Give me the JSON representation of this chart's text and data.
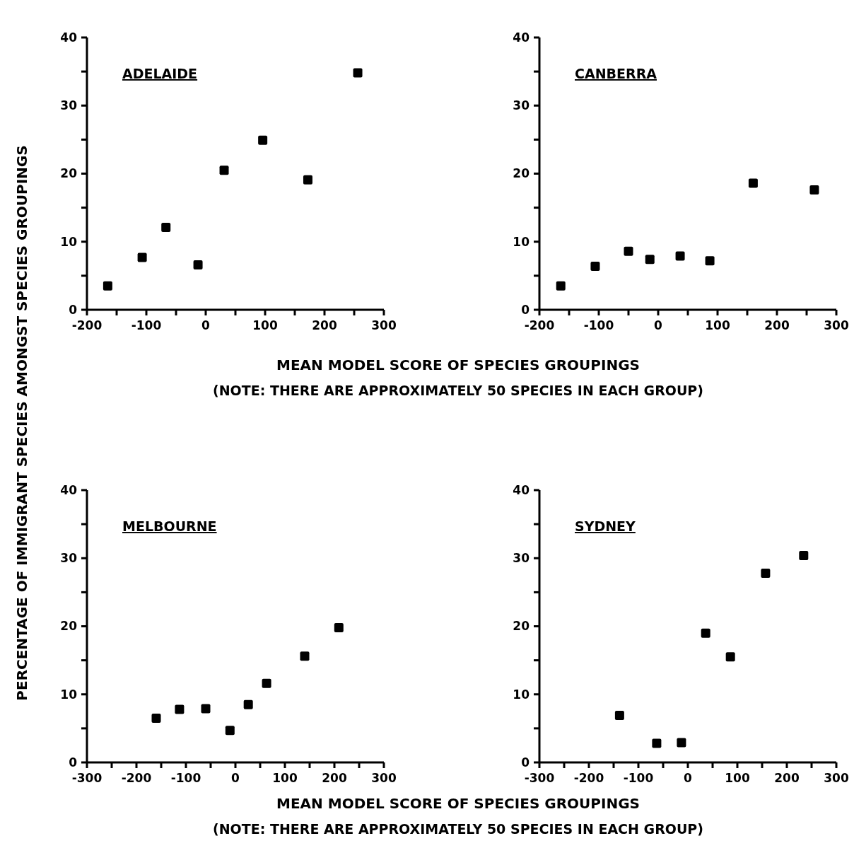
{
  "chart_data": [
    {
      "type": "scatter",
      "title": "ADELAIDE",
      "xlabel": "MEAN MODEL SCORE OF SPECIES GROUPINGS",
      "ylabel": "PERCENTAGE OF IMMIGRANT SPECIES AMONGST SPECIES GROUPINGS",
      "annotations": [
        "(NOTE: THERE ARE APPROXIMATELY 50 SPECIES IN EACH GROUP)"
      ],
      "marker": "square",
      "grid": false,
      "xlim": [
        -200,
        300
      ],
      "ylim": [
        0,
        40
      ],
      "xticks": [
        -200,
        {
          "value": -150,
          "label": null
        },
        -100,
        {
          "value": -50,
          "label": null
        },
        0,
        {
          "value": 50,
          "label": null
        },
        100,
        {
          "value": 150,
          "label": null
        },
        200,
        {
          "value": 250,
          "label": null
        },
        300
      ],
      "yticks": [
        0,
        {
          "value": 5,
          "label": null
        },
        10,
        {
          "value": 15,
          "label": null
        },
        20,
        {
          "value": 25,
          "label": null
        },
        30,
        {
          "value": 35,
          "label": null
        },
        40
      ],
      "series": [
        {
          "color": "#000000",
          "x": [
            -165,
            -107,
            -67,
            -13,
            31,
            96,
            172,
            256
          ],
          "values": [
            3.5,
            7.7,
            12.1,
            6.6,
            20.5,
            24.9,
            19.1,
            34.8
          ]
        }
      ]
    },
    {
      "type": "scatter",
      "title": "CANBERRA",
      "marker": "square",
      "grid": false,
      "xlim": [
        -200,
        300
      ],
      "ylim": [
        0,
        40
      ],
      "xticks": [
        -200,
        {
          "value": -150,
          "label": null
        },
        -100,
        {
          "value": -50,
          "label": null
        },
        0,
        {
          "value": 50,
          "label": null
        },
        100,
        {
          "value": 150,
          "label": null
        },
        200,
        {
          "value": 250,
          "label": null
        },
        300
      ],
      "yticks": [
        0,
        {
          "value": 5,
          "label": null
        },
        10,
        {
          "value": 15,
          "label": null
        },
        20,
        {
          "value": 25,
          "label": null
        },
        30,
        {
          "value": 35,
          "label": null
        },
        40
      ],
      "series": [
        {
          "color": "#000000",
          "x": [
            -164,
            -106,
            -50,
            -14,
            37,
            87,
            160,
            263
          ],
          "values": [
            3.5,
            6.4,
            8.6,
            7.4,
            7.9,
            7.2,
            18.6,
            17.6
          ]
        }
      ]
    },
    {
      "type": "scatter",
      "title": "MELBOURNE",
      "xlabel": "MEAN MODEL SCORE OF SPECIES GROUPINGS",
      "annotations": [
        "(NOTE: THERE ARE APPROXIMATELY 50 SPECIES IN EACH GROUP)"
      ],
      "marker": "square",
      "grid": false,
      "xlim": [
        -300,
        300
      ],
      "ylim": [
        0,
        40
      ],
      "xticks": [
        -300,
        {
          "value": -250,
          "label": null
        },
        -200,
        {
          "value": -150,
          "label": null
        },
        -100,
        {
          "value": -50,
          "label": null
        },
        0,
        {
          "value": 50,
          "label": null
        },
        100,
        {
          "value": 150,
          "label": null
        },
        200,
        {
          "value": 250,
          "label": null
        },
        300
      ],
      "yticks": [
        0,
        {
          "value": 5,
          "label": null
        },
        10,
        {
          "value": 15,
          "label": null
        },
        20,
        {
          "value": 25,
          "label": null
        },
        30,
        {
          "value": 35,
          "label": null
        },
        40
      ],
      "series": [
        {
          "color": "#000000",
          "x": [
            -160,
            -113,
            -60,
            -11,
            26,
            63,
            140,
            209
          ],
          "values": [
            6.5,
            7.8,
            7.9,
            4.7,
            8.5,
            11.6,
            15.6,
            19.8
          ]
        }
      ]
    },
    {
      "type": "scatter",
      "title": "SYDNEY",
      "marker": "square",
      "grid": false,
      "xlim": [
        -300,
        300
      ],
      "ylim": [
        0,
        40
      ],
      "xticks": [
        -300,
        {
          "value": -250,
          "label": null
        },
        -200,
        {
          "value": -150,
          "label": null
        },
        -100,
        {
          "value": -50,
          "label": null
        },
        0,
        {
          "value": 50,
          "label": null
        },
        100,
        {
          "value": 150,
          "label": null
        },
        200,
        {
          "value": 250,
          "label": null
        },
        300
      ],
      "yticks": [
        0,
        {
          "value": 5,
          "label": null
        },
        10,
        {
          "value": 15,
          "label": null
        },
        20,
        {
          "value": 25,
          "label": null
        },
        30,
        {
          "value": 35,
          "label": null
        },
        40
      ],
      "series": [
        {
          "color": "#000000",
          "x": [
            -138,
            -63,
            -13,
            36,
            86,
            157,
            234
          ],
          "values": [
            6.9,
            2.8,
            2.9,
            19.0,
            15.5,
            27.8,
            30.4
          ]
        }
      ]
    }
  ]
}
